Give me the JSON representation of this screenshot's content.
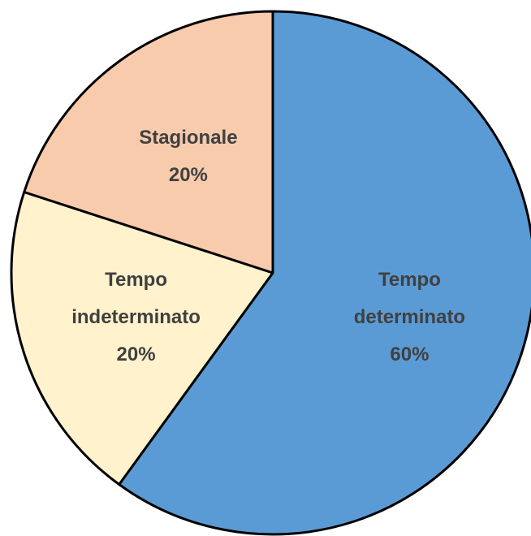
{
  "chart_data": {
    "type": "pie",
    "categories": [
      "Tempo determinato",
      "Tempo indeterminato",
      "Stagionale"
    ],
    "values": [
      60,
      20,
      20
    ],
    "value_labels": [
      "60%",
      "20%",
      "20%"
    ],
    "colors": [
      "#5b9bd5",
      "#fff2cc",
      "#f8cbad"
    ]
  }
}
